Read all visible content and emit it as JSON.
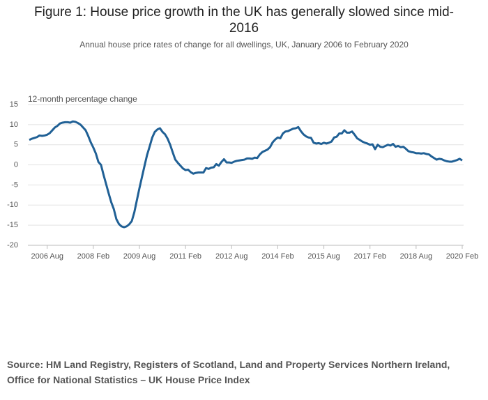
{
  "chart_data": {
    "type": "line",
    "title": "Figure 1: House price growth in the UK has generally slowed since mid-2016",
    "subtitle": "Annual house price rates of change for all dwellings, UK, January 2006 to February 2020",
    "y_label": "12-month percentage change",
    "source": "Source: HM Land Registry, Registers of Scotland, Land and Property Services Northern Ireland, Office for National Statistics – UK House Price Index",
    "categories": [
      null,
      null,
      null,
      null,
      null,
      null,
      null,
      "2006 Aug",
      null,
      null,
      null,
      null,
      null,
      null,
      null,
      null,
      null,
      null,
      null,
      null,
      null,
      null,
      null,
      null,
      null,
      "2008 Feb",
      null,
      null,
      null,
      null,
      null,
      null,
      null,
      null,
      null,
      null,
      null,
      null,
      null,
      null,
      null,
      null,
      null,
      "2009 Aug",
      null,
      null,
      null,
      null,
      null,
      null,
      null,
      null,
      null,
      null,
      null,
      null,
      null,
      null,
      null,
      null,
      null,
      "2011 Feb",
      null,
      null,
      null,
      null,
      null,
      null,
      null,
      null,
      null,
      null,
      null,
      null,
      null,
      null,
      null,
      null,
      null,
      "2012 Aug",
      null,
      null,
      null,
      null,
      null,
      null,
      null,
      null,
      null,
      null,
      null,
      null,
      null,
      null,
      null,
      null,
      null,
      "2014 Feb",
      null,
      null,
      null,
      null,
      null,
      null,
      null,
      null,
      null,
      null,
      null,
      null,
      null,
      null,
      null,
      null,
      null,
      "2015 Aug",
      null,
      null,
      null,
      null,
      null,
      null,
      null,
      null,
      null,
      null,
      null,
      null,
      null,
      null,
      null,
      null,
      null,
      "2017 Feb",
      null,
      null,
      null,
      null,
      null,
      null,
      null,
      null,
      null,
      null,
      null,
      null,
      null,
      null,
      null,
      null,
      null,
      "2018 Aug",
      null,
      null,
      null,
      null,
      null,
      null,
      null,
      null,
      null,
      null,
      null,
      null,
      null,
      null,
      null,
      null,
      null,
      "2020 Feb"
    ],
    "series": [
      {
        "name": "12-month percentage change",
        "color": "#206095",
        "values": [
          6.2,
          6.5,
          6.7,
          6.9,
          7.3,
          7.2,
          7.3,
          7.5,
          7.9,
          8.6,
          9.3,
          9.7,
          10.3,
          10.5,
          10.6,
          10.6,
          10.5,
          10.8,
          10.7,
          10.4,
          10.0,
          9.3,
          8.6,
          7.2,
          5.6,
          4.3,
          2.8,
          0.7,
          0.0,
          -2.5,
          -4.8,
          -7.1,
          -9.3,
          -11.0,
          -13.5,
          -14.7,
          -15.3,
          -15.5,
          -15.3,
          -14.8,
          -14.0,
          -11.8,
          -8.8,
          -5.8,
          -3.0,
          -0.2,
          2.5,
          4.6,
          6.8,
          8.2,
          8.8,
          9.1,
          8.2,
          7.6,
          6.5,
          5.0,
          3.1,
          1.3,
          0.5,
          -0.2,
          -0.9,
          -1.3,
          -1.2,
          -1.8,
          -2.2,
          -2.0,
          -1.9,
          -1.9,
          -1.9,
          -0.8,
          -1.0,
          -0.7,
          -0.6,
          0.2,
          -0.2,
          0.7,
          1.4,
          0.6,
          0.6,
          0.5,
          0.8,
          1.0,
          1.1,
          1.2,
          1.3,
          1.6,
          1.6,
          1.5,
          1.8,
          1.7,
          2.6,
          3.2,
          3.5,
          3.8,
          4.4,
          5.6,
          6.3,
          6.8,
          6.6,
          7.8,
          8.3,
          8.4,
          8.7,
          9.0,
          9.1,
          9.4,
          8.4,
          7.6,
          7.1,
          6.8,
          6.7,
          5.5,
          5.3,
          5.4,
          5.2,
          5.5,
          5.3,
          5.5,
          5.8,
          6.8,
          7.0,
          7.8,
          7.8,
          8.6,
          8.0,
          8.0,
          8.3,
          7.5,
          6.6,
          6.2,
          5.8,
          5.5,
          5.3,
          5.0,
          5.1,
          3.9,
          5.0,
          4.5,
          4.4,
          4.7,
          5.0,
          4.8,
          5.2,
          4.5,
          4.7,
          4.4,
          4.5,
          4.0,
          3.4,
          3.2,
          3.1,
          2.9,
          2.9,
          2.8,
          2.9,
          2.7,
          2.6,
          2.1,
          1.7,
          1.3,
          1.5,
          1.4,
          1.1,
          0.9,
          0.8,
          0.8,
          1.0,
          1.2,
          1.5,
          1.1
        ]
      }
    ],
    "ylim": [
      -20,
      15
    ],
    "yticks": [
      15,
      10,
      5,
      0,
      -5,
      -10,
      -15,
      -20
    ],
    "grid": true
  }
}
